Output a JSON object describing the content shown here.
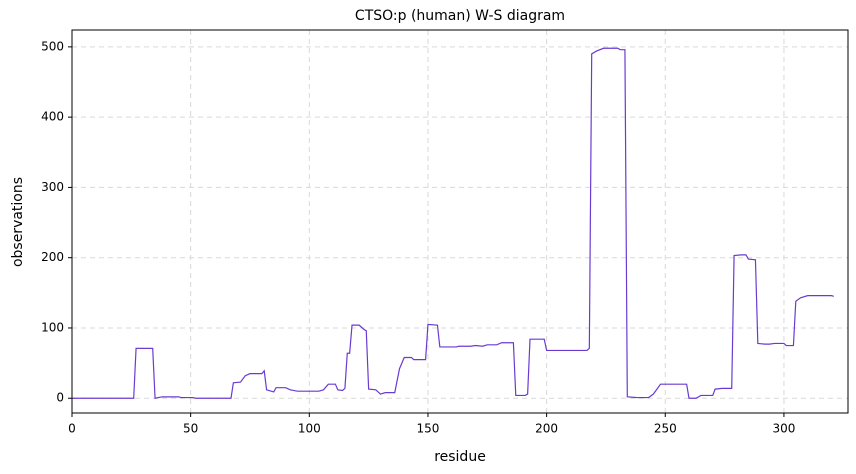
{
  "chart_data": {
    "type": "line",
    "title": "CTSO:p (human) W-S diagram",
    "x_label": "residue",
    "y_label": "observations",
    "xlim": [
      0,
      327
    ],
    "ylim": [
      -21,
      524
    ],
    "xticks": [
      0,
      50,
      100,
      150,
      200,
      250,
      300
    ],
    "yticks": [
      0,
      100,
      200,
      300,
      400,
      500
    ],
    "grid": true,
    "series": [
      {
        "name": "observations",
        "color": "#6a3bd1",
        "x": [
          0,
          26,
          27,
          34,
          35,
          38,
          45,
          46,
          51,
          52,
          67,
          68,
          71,
          73,
          75,
          80,
          81,
          82,
          85,
          86,
          90,
          92,
          95,
          104,
          106,
          108,
          111,
          112,
          114,
          115,
          116,
          117,
          118,
          121,
          123,
          124,
          125,
          128,
          130,
          132,
          136,
          138,
          140,
          143,
          144,
          149,
          150,
          154,
          155,
          162,
          163,
          168,
          170,
          173,
          175,
          179,
          181,
          186,
          187,
          191,
          192,
          193,
          199,
          200,
          217,
          218,
          219,
          221,
          224,
          230,
          231,
          233,
          234,
          238,
          243,
          245,
          248,
          259,
          260,
          263,
          265,
          270,
          271,
          274,
          278,
          279,
          282,
          284,
          285,
          288,
          289,
          292,
          294,
          296,
          300,
          301,
          304,
          305,
          307,
          310,
          320,
          321
        ],
        "values": [
          0,
          0,
          71,
          71,
          0,
          2,
          2,
          1,
          1,
          0,
          0,
          22,
          23,
          32,
          35,
          35,
          39,
          12,
          9,
          15,
          15,
          12,
          10,
          10,
          12,
          20,
          20,
          12,
          11,
          14,
          64,
          64,
          104,
          104,
          98,
          96,
          13,
          12,
          6,
          8,
          8,
          42,
          58,
          58,
          55,
          55,
          105,
          104,
          73,
          73,
          74,
          74,
          75,
          74,
          76,
          76,
          79,
          79,
          4,
          4,
          6,
          84,
          84,
          68,
          68,
          71,
          490,
          494,
          498,
          498,
          496,
          496,
          2,
          1,
          1,
          6,
          20,
          20,
          0,
          0,
          4,
          4,
          13,
          14,
          14,
          203,
          204,
          204,
          198,
          197,
          78,
          77,
          77,
          78,
          78,
          75,
          75,
          138,
          143,
          146,
          146,
          145
        ]
      }
    ]
  }
}
